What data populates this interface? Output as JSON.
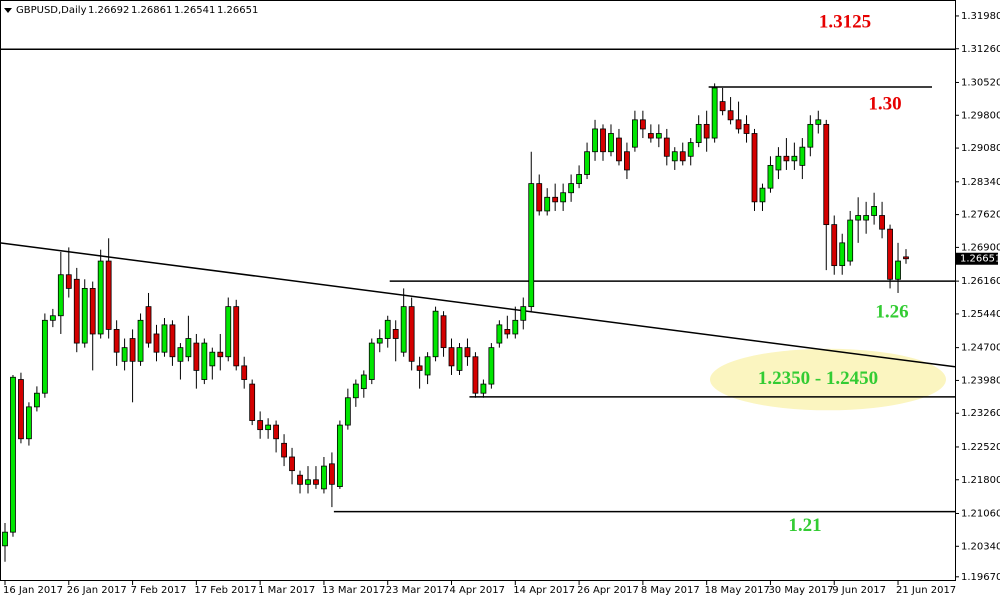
{
  "chart_data": {
    "type": "candlestick",
    "symbol": "GBPUSD,Daily",
    "categories": [
      "16 Jan 2017",
      null,
      null,
      null,
      null,
      null,
      null,
      null,
      "26 Jan 2017",
      null,
      null,
      null,
      null,
      null,
      null,
      null,
      "7 Feb 2017",
      null,
      null,
      null,
      null,
      null,
      null,
      null,
      "17 Feb 2017",
      null,
      null,
      null,
      null,
      null,
      null,
      null,
      "1 Mar 2017",
      null,
      null,
      null,
      null,
      null,
      null,
      null,
      "13 Mar 2017",
      null,
      null,
      null,
      null,
      null,
      null,
      null,
      "23 Mar 2017",
      null,
      null,
      null,
      null,
      null,
      null,
      null,
      "4 Apr 2017",
      null,
      null,
      null,
      null,
      null,
      null,
      null,
      "14 Apr 2017",
      null,
      null,
      null,
      null,
      null,
      null,
      null,
      "26 Apr 2017",
      null,
      null,
      null,
      null,
      null,
      null,
      null,
      "8 May 2017",
      null,
      null,
      null,
      null,
      null,
      null,
      null,
      "18 May 2017",
      null,
      null,
      null,
      null,
      null,
      null,
      null,
      "30 May 2017",
      null,
      null,
      null,
      null,
      null,
      null,
      null,
      "9 Jun 2017",
      null,
      null,
      null,
      null,
      null,
      null,
      null,
      "21 Jun 2017",
      null
    ],
    "candles": [
      [
        1.2035,
        1.2085,
        1.2,
        1.2065
      ],
      [
        1.2065,
        1.241,
        1.2055,
        1.2405
      ],
      [
        1.24,
        1.2415,
        1.226,
        1.227
      ],
      [
        1.227,
        1.235,
        1.2255,
        1.234
      ],
      [
        1.234,
        1.2385,
        1.233,
        1.237
      ],
      [
        1.237,
        1.2545,
        1.236,
        1.253
      ],
      [
        1.253,
        1.2555,
        1.2515,
        1.254
      ],
      [
        1.254,
        1.268,
        1.25,
        1.263
      ],
      [
        1.263,
        1.269,
        1.258,
        1.26
      ],
      [
        1.262,
        1.2645,
        1.246,
        1.248
      ],
      [
        1.248,
        1.262,
        1.247,
        1.26
      ],
      [
        1.26,
        1.2615,
        1.242,
        1.25
      ],
      [
        1.25,
        1.2685,
        1.249,
        1.266
      ],
      [
        1.266,
        1.271,
        1.249,
        1.251
      ],
      [
        1.251,
        1.253,
        1.243,
        1.246
      ],
      [
        1.244,
        1.249,
        1.242,
        1.247
      ],
      [
        1.249,
        1.251,
        1.235,
        1.244
      ],
      [
        1.244,
        1.2545,
        1.243,
        1.253
      ],
      [
        1.256,
        1.259,
        1.247,
        1.248
      ],
      [
        1.25,
        1.252,
        1.244,
        1.246
      ],
      [
        1.246,
        1.2535,
        1.245,
        1.252
      ],
      [
        1.252,
        1.253,
        1.243,
        1.245
      ],
      [
        1.244,
        1.248,
        1.24,
        1.247
      ],
      [
        1.245,
        1.254,
        1.244,
        1.249
      ],
      [
        1.248,
        1.25,
        1.238,
        1.242
      ],
      [
        1.24,
        1.249,
        1.239,
        1.248
      ],
      [
        1.243,
        1.247,
        1.24,
        1.246
      ],
      [
        1.246,
        1.25,
        1.242,
        1.245
      ],
      [
        1.245,
        1.258,
        1.244,
        1.256
      ],
      [
        1.256,
        1.2575,
        1.242,
        1.243
      ],
      [
        1.243,
        1.245,
        1.238,
        1.24
      ],
      [
        1.239,
        1.24,
        1.23,
        1.231
      ],
      [
        1.231,
        1.233,
        1.227,
        1.229
      ],
      [
        1.229,
        1.2315,
        1.227,
        1.23
      ],
      [
        1.23,
        1.231,
        1.224,
        1.227
      ],
      [
        1.226,
        1.228,
        1.221,
        1.223
      ],
      [
        1.223,
        1.225,
        1.217,
        1.22
      ],
      [
        1.219,
        1.22,
        1.215,
        1.217
      ],
      [
        1.217,
        1.221,
        1.215,
        1.218
      ],
      [
        1.218,
        1.221,
        1.216,
        1.217
      ],
      [
        1.216,
        1.223,
        1.215,
        1.221
      ],
      [
        1.2215,
        1.224,
        1.212,
        1.217
      ],
      [
        1.2165,
        1.231,
        1.216,
        1.23
      ],
      [
        1.23,
        1.238,
        1.229,
        1.236
      ],
      [
        1.236,
        1.24,
        1.234,
        1.239
      ],
      [
        1.238,
        1.242,
        1.236,
        1.241
      ],
      [
        1.24,
        1.249,
        1.239,
        1.248
      ],
      [
        1.248,
        1.251,
        1.246,
        1.249
      ],
      [
        1.249,
        1.254,
        1.247,
        1.253
      ],
      [
        1.251,
        1.253,
        1.244,
        1.249
      ],
      [
        1.246,
        1.26,
        1.245,
        1.256
      ],
      [
        1.256,
        1.258,
        1.242,
        1.244
      ],
      [
        1.243,
        1.245,
        1.238,
        1.242
      ],
      [
        1.241,
        1.246,
        1.239,
        1.245
      ],
      [
        1.245,
        1.256,
        1.244,
        1.255
      ],
      [
        1.254,
        1.255,
        1.245,
        1.247
      ],
      [
        1.247,
        1.249,
        1.241,
        1.243
      ],
      [
        1.242,
        1.248,
        1.241,
        1.247
      ],
      [
        1.247,
        1.249,
        1.243,
        1.245
      ],
      [
        1.245,
        1.246,
        1.236,
        1.237
      ],
      [
        1.237,
        1.24,
        1.236,
        1.239
      ],
      [
        1.239,
        1.248,
        1.238,
        1.247
      ],
      [
        1.248,
        1.253,
        1.247,
        1.252
      ],
      [
        1.251,
        1.254,
        1.249,
        1.25
      ],
      [
        1.25,
        1.256,
        1.249,
        1.253
      ],
      [
        1.253,
        1.258,
        1.251,
        1.256
      ],
      [
        1.256,
        1.29,
        1.255,
        1.283
      ],
      [
        1.283,
        1.285,
        1.276,
        1.277
      ],
      [
        1.277,
        1.282,
        1.276,
        1.28
      ],
      [
        1.28,
        1.283,
        1.277,
        1.279
      ],
      [
        1.279,
        1.283,
        1.277,
        1.281
      ],
      [
        1.281,
        1.285,
        1.279,
        1.283
      ],
      [
        1.283,
        1.287,
        1.282,
        1.285
      ],
      [
        1.285,
        1.292,
        1.284,
        1.29
      ],
      [
        1.29,
        1.297,
        1.288,
        1.295
      ],
      [
        1.295,
        1.296,
        1.288,
        1.29
      ],
      [
        1.29,
        1.296,
        1.289,
        1.294
      ],
      [
        1.293,
        1.295,
        1.287,
        1.288
      ],
      [
        1.29,
        1.292,
        1.284,
        1.286
      ],
      [
        1.291,
        1.299,
        1.29,
        1.297
      ],
      [
        1.297,
        1.299,
        1.293,
        1.295
      ],
      [
        1.294,
        1.296,
        1.292,
        1.293
      ],
      [
        1.293,
        1.296,
        1.291,
        1.294
      ],
      [
        1.293,
        1.295,
        1.287,
        1.289
      ],
      [
        1.288,
        1.291,
        1.286,
        1.29
      ],
      [
        1.29,
        1.292,
        1.287,
        1.288
      ],
      [
        1.289,
        1.293,
        1.287,
        1.292
      ],
      [
        1.292,
        1.298,
        1.291,
        1.296
      ],
      [
        1.296,
        1.299,
        1.29,
        1.293
      ],
      [
        1.293,
        1.305,
        1.292,
        1.304
      ],
      [
        1.301,
        1.304,
        1.298,
        1.299
      ],
      [
        1.299,
        1.302,
        1.296,
        1.297
      ],
      [
        1.297,
        1.301,
        1.294,
        1.295
      ],
      [
        1.296,
        1.298,
        1.292,
        1.294
      ],
      [
        1.294,
        1.295,
        1.277,
        1.279
      ],
      [
        1.279,
        1.283,
        1.277,
        1.282
      ],
      [
        1.282,
        1.289,
        1.281,
        1.287
      ],
      [
        1.286,
        1.291,
        1.284,
        1.289
      ],
      [
        1.289,
        1.293,
        1.286,
        1.288
      ],
      [
        1.288,
        1.292,
        1.286,
        1.289
      ],
      [
        1.287,
        1.293,
        1.284,
        1.291
      ],
      [
        1.291,
        1.298,
        1.289,
        1.296
      ],
      [
        1.296,
        1.299,
        1.294,
        1.297
      ],
      [
        1.296,
        1.297,
        1.264,
        1.274
      ],
      [
        1.274,
        1.276,
        1.263,
        1.265
      ],
      [
        1.265,
        1.272,
        1.263,
        1.27
      ],
      [
        1.266,
        1.277,
        1.265,
        1.275
      ],
      [
        1.275,
        1.28,
        1.27,
        1.276
      ],
      [
        1.275,
        1.279,
        1.272,
        1.276
      ],
      [
        1.276,
        1.281,
        1.274,
        1.278
      ],
      [
        1.276,
        1.279,
        1.271,
        1.273
      ],
      [
        1.273,
        1.274,
        1.26,
        1.262
      ],
      [
        1.262,
        1.27,
        1.259,
        1.266
      ],
      [
        1.26692,
        1.26861,
        1.26541,
        1.26651
      ]
    ],
    "up_color": "#00e600",
    "down_color": "#d40000",
    "ylim": [
      1.196,
      1.3233
    ],
    "yticks": [
      {
        "value": 1.3198,
        "label": "1.31980"
      },
      {
        "value": 1.3126,
        "label": "1.31260"
      },
      {
        "value": 1.3052,
        "label": "1.30520"
      },
      {
        "value": 1.298,
        "label": "1.29800"
      },
      {
        "value": 1.2908,
        "label": "1.29080"
      },
      {
        "value": 1.2834,
        "label": "1.28340"
      },
      {
        "value": 1.2762,
        "label": "1.27620"
      },
      {
        "value": 1.269,
        "label": "1.26900"
      },
      {
        "value": 1.2616,
        "label": "1.26160"
      },
      {
        "value": 1.2544,
        "label": "1.25440"
      },
      {
        "value": 1.247,
        "label": "1.24700"
      },
      {
        "value": 1.2398,
        "label": "1.23980"
      },
      {
        "value": 1.2326,
        "label": "1.23260"
      },
      {
        "value": 1.2252,
        "label": "1.22520"
      },
      {
        "value": 1.218,
        "label": "1.21800"
      },
      {
        "value": 1.2106,
        "label": "1.21060"
      },
      {
        "value": 1.2034,
        "label": "1.20340"
      },
      {
        "value": 1.1967,
        "label": "1.19670"
      }
    ],
    "levels": [
      {
        "value": 1.3125,
        "start": 0,
        "label": "1.3125",
        "color": "#e60000"
      },
      {
        "value": 1.3042,
        "start": 89,
        "label": "1.30",
        "color": "#e60000"
      },
      {
        "value": 1.2616,
        "start": 49,
        "label": "1.26",
        "color": "#33cc33"
      },
      {
        "value": 1.2362,
        "start": 59,
        "label": null,
        "color": null
      },
      {
        "value": 1.211,
        "start": 42,
        "label": "1.21",
        "color": "#33cc33"
      }
    ],
    "trendline": [
      1.27,
      1.2428
    ],
    "zone": {
      "range": [
        1.235,
        1.245
      ],
      "label": "1.2350 - 1.2450",
      "color": "#33cc33",
      "fill": "#fbf5c0"
    }
  }
}
